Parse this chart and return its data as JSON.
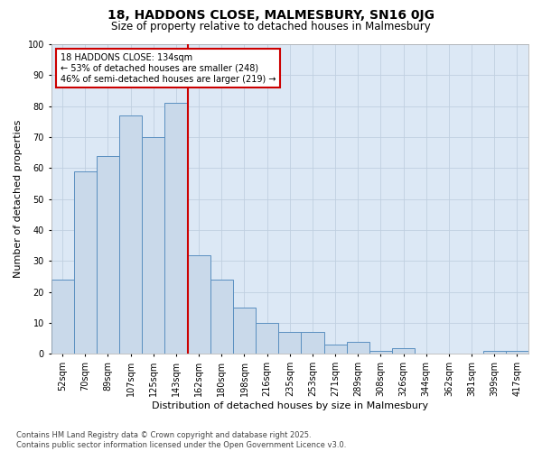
{
  "title": "18, HADDONS CLOSE, MALMESBURY, SN16 0JG",
  "subtitle": "Size of property relative to detached houses in Malmesbury",
  "xlabel": "Distribution of detached houses by size in Malmesbury",
  "ylabel": "Number of detached properties",
  "bins": [
    "52sqm",
    "70sqm",
    "89sqm",
    "107sqm",
    "125sqm",
    "143sqm",
    "162sqm",
    "180sqm",
    "198sqm",
    "216sqm",
    "235sqm",
    "253sqm",
    "271sqm",
    "289sqm",
    "308sqm",
    "326sqm",
    "344sqm",
    "362sqm",
    "381sqm",
    "399sqm",
    "417sqm"
  ],
  "values": [
    24,
    59,
    64,
    77,
    70,
    81,
    32,
    24,
    15,
    10,
    7,
    7,
    3,
    4,
    1,
    2,
    0,
    0,
    0,
    1,
    1
  ],
  "bar_color": "#c9d9ea",
  "bar_edge_color": "#5a8fc0",
  "vline_color": "#cc0000",
  "vline_pos": 5.5,
  "annotation_text": "18 HADDONS CLOSE: 134sqm\n← 53% of detached houses are smaller (248)\n46% of semi-detached houses are larger (219) →",
  "annotation_box_facecolor": "#ffffff",
  "annotation_box_edgecolor": "#cc0000",
  "ylim": [
    0,
    100
  ],
  "yticks": [
    0,
    10,
    20,
    30,
    40,
    50,
    60,
    70,
    80,
    90,
    100
  ],
  "grid_color": "#c0cfe0",
  "bg_color": "#dce8f5",
  "footer": "Contains HM Land Registry data © Crown copyright and database right 2025.\nContains public sector information licensed under the Open Government Licence v3.0.",
  "title_fontsize": 10,
  "subtitle_fontsize": 8.5,
  "xlabel_fontsize": 8,
  "ylabel_fontsize": 8,
  "tick_fontsize": 7,
  "annotation_fontsize": 7
}
